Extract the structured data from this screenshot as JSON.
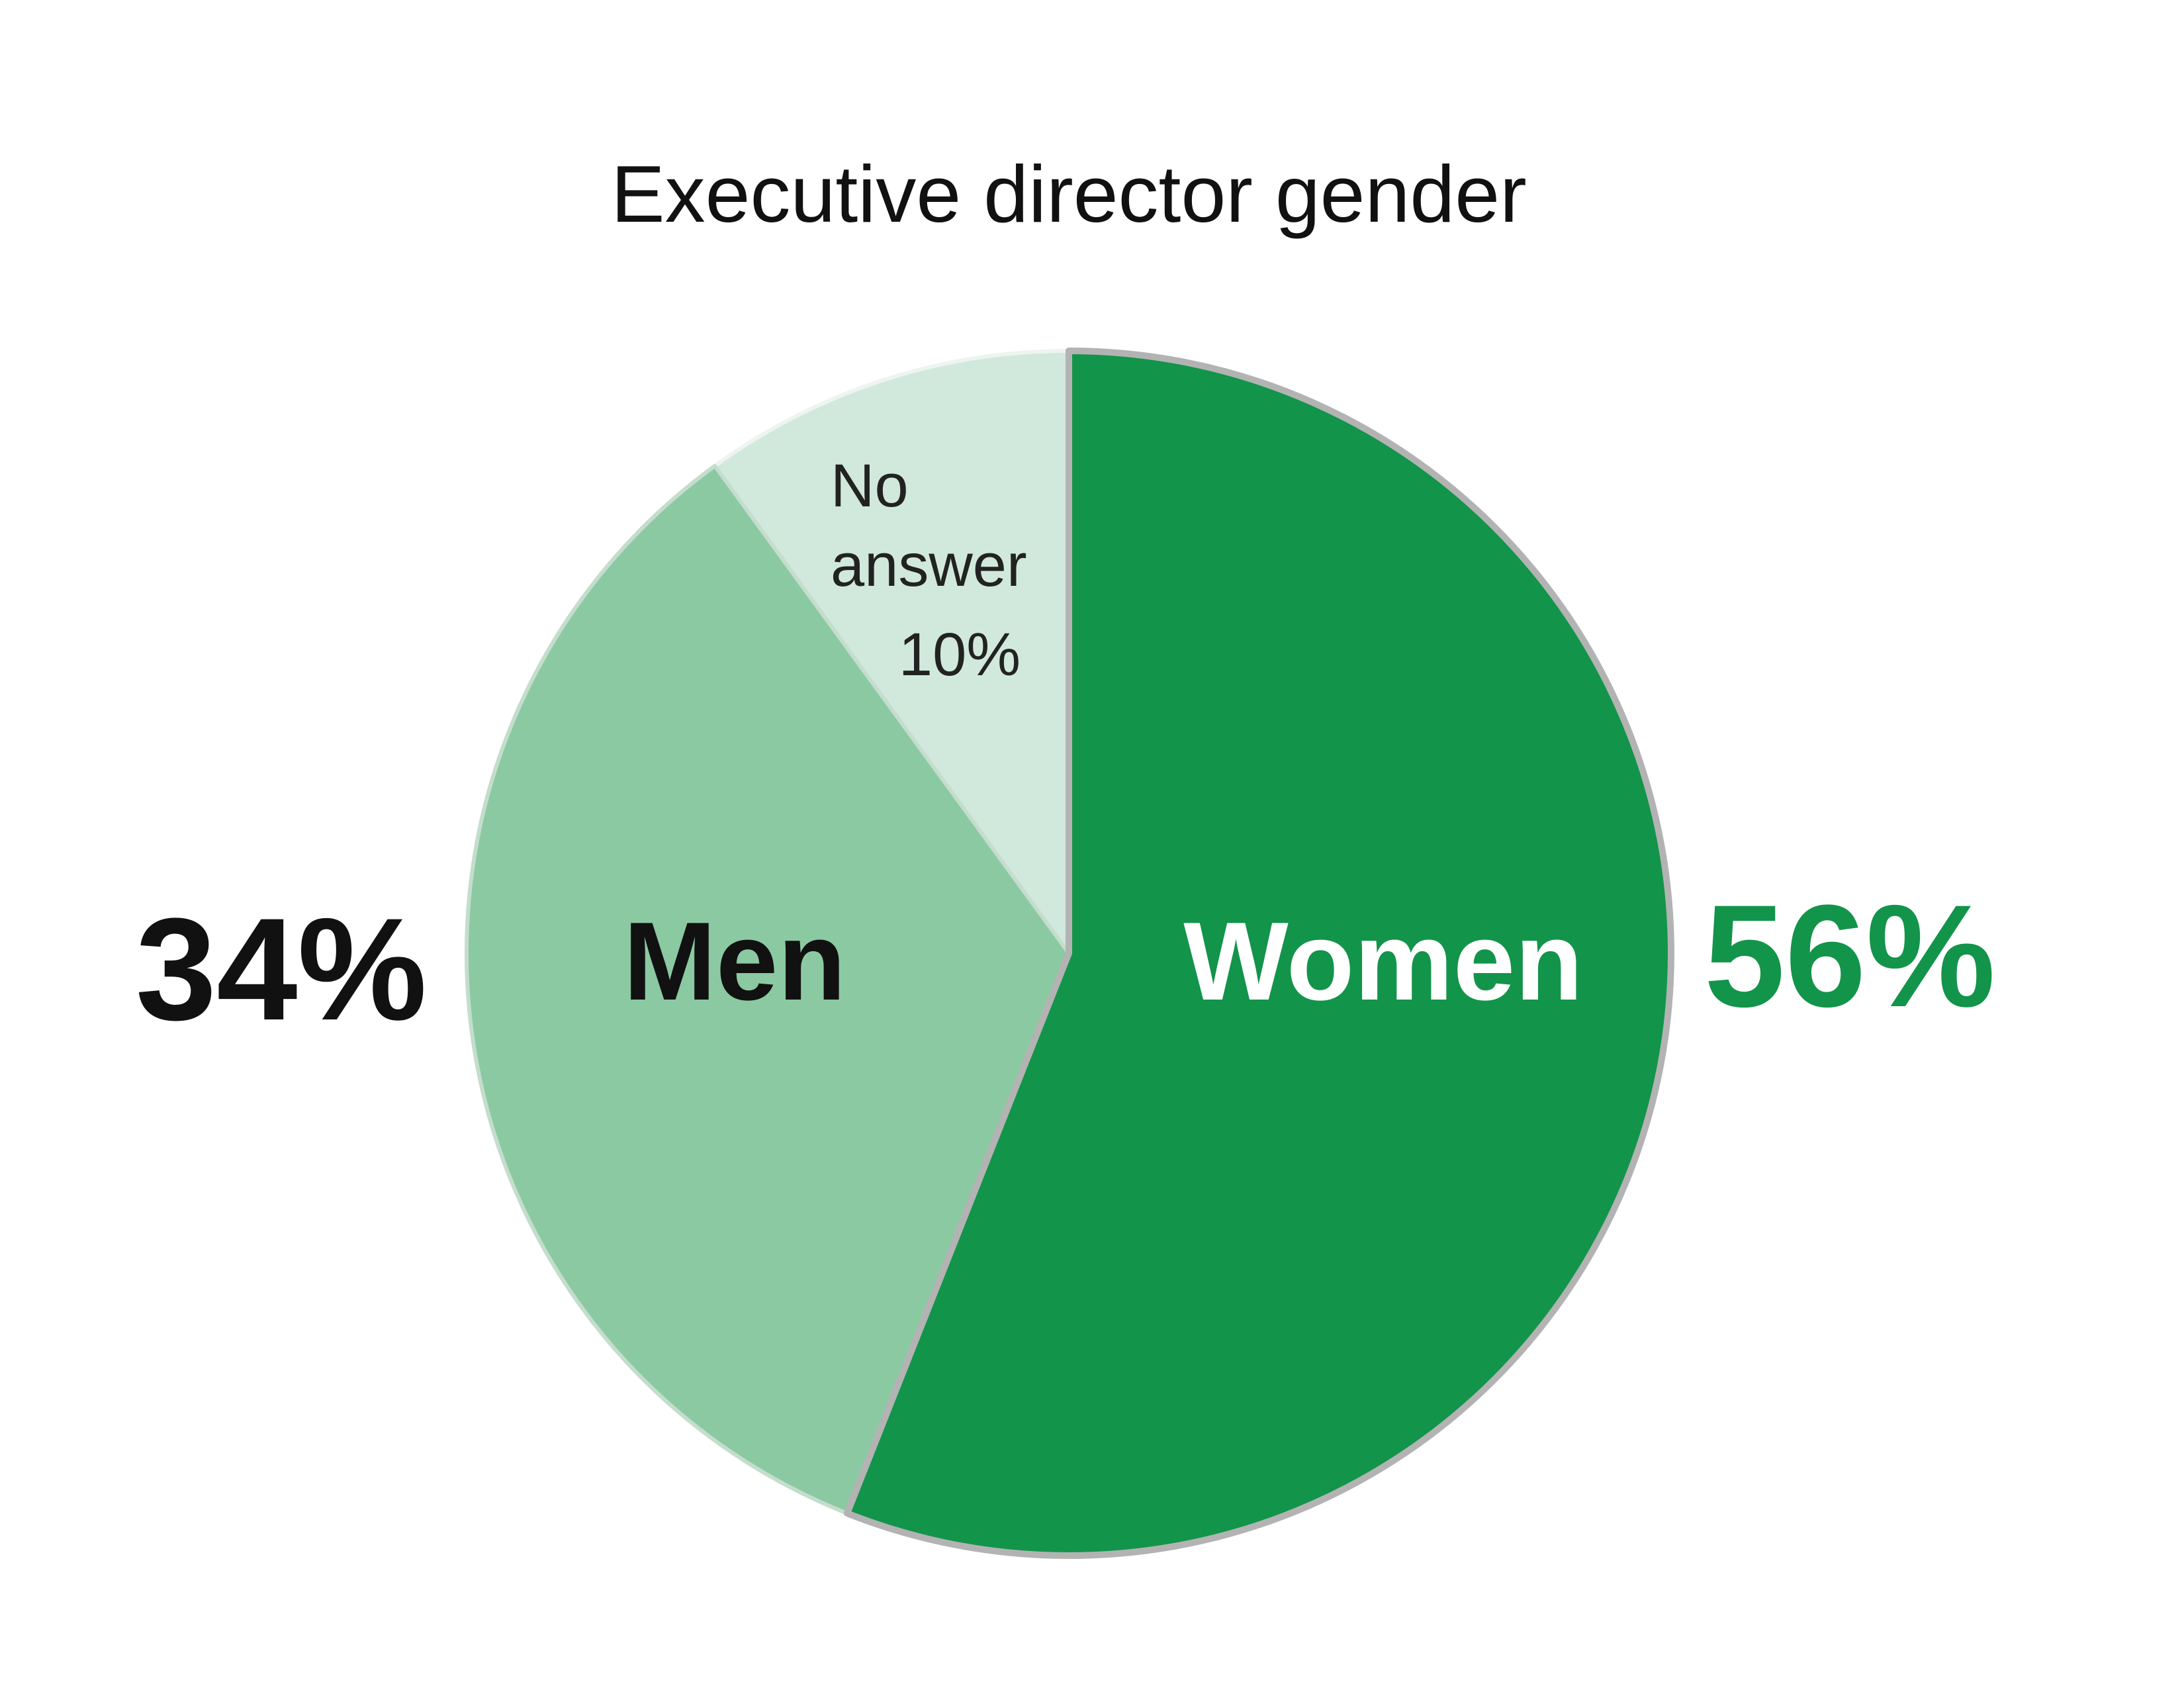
{
  "chart_data": {
    "type": "pie",
    "title": "Executive director gender",
    "start_angle_deg": 0,
    "direction": "clockwise",
    "slices": [
      {
        "label": "Women",
        "value": 56,
        "value_label": "56%",
        "color": "#12944a",
        "label_color": "#ffffff",
        "value_color": "#12944a",
        "stroke": "#b3b3b3"
      },
      {
        "label": "Men",
        "value": 34,
        "value_label": "34%",
        "color": "#8bc9a2",
        "label_color": "#111111",
        "value_color": "#111111",
        "stroke": "#c4ddcc"
      },
      {
        "label": "No answer",
        "value": 10,
        "value_label": "10%",
        "color": "#d0e9dc",
        "label_color": "#222222",
        "value_color": "#222222",
        "stroke": "#eef4f0"
      }
    ]
  }
}
